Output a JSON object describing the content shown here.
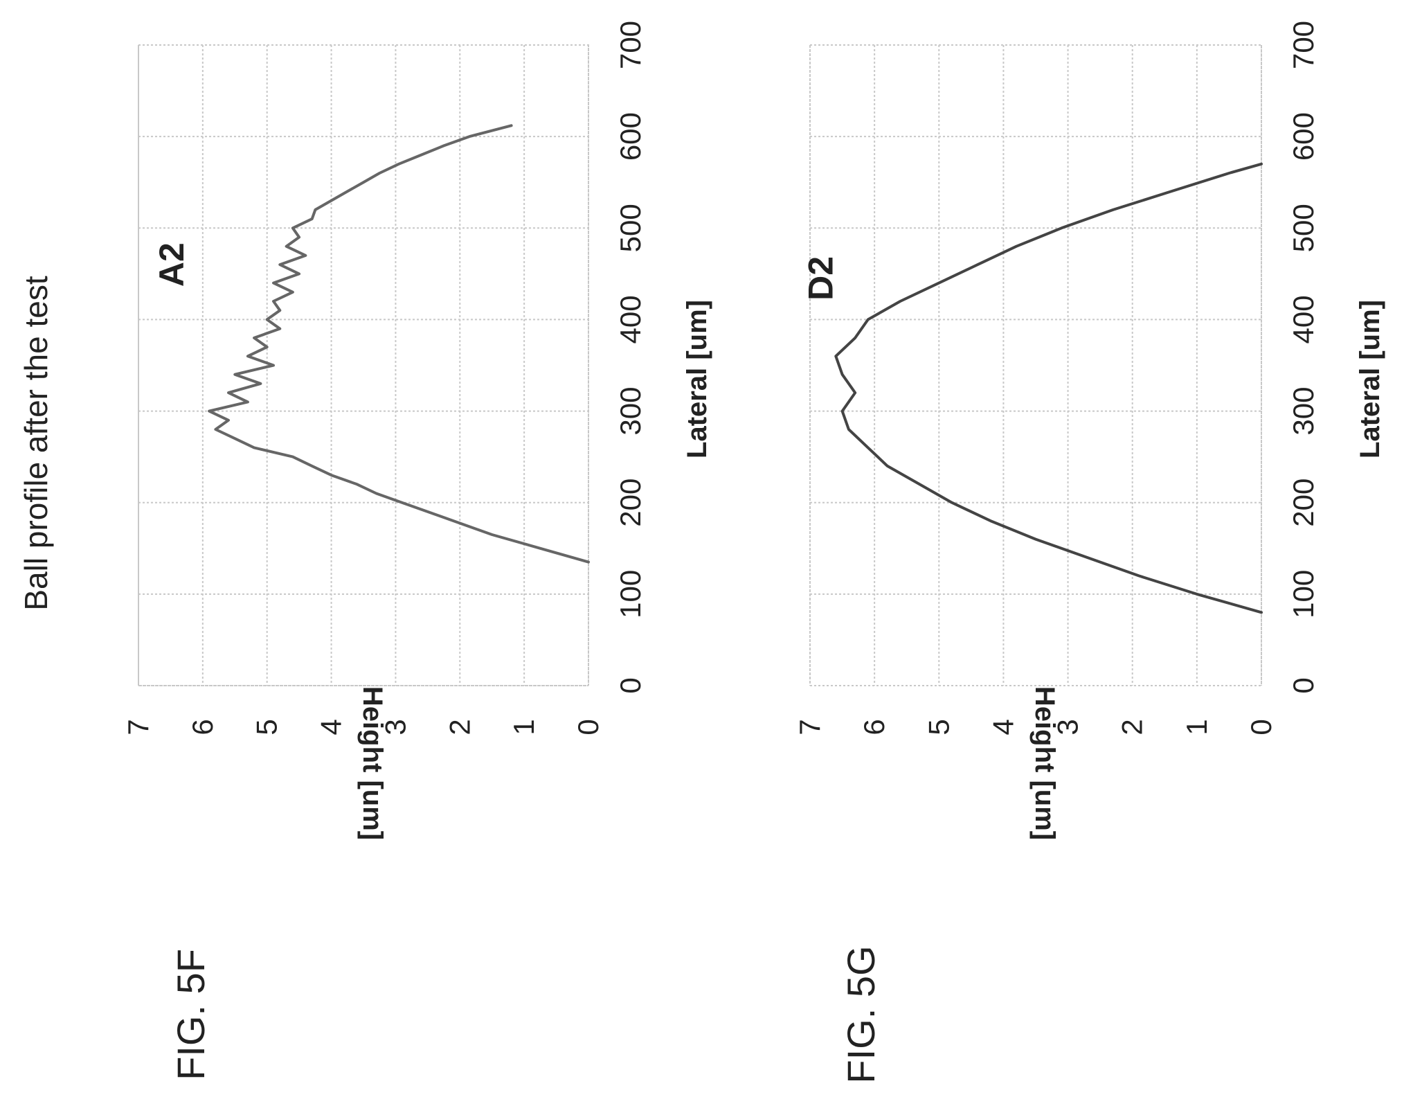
{
  "page_title": "Ball profile after the test",
  "chart_data": [
    {
      "type": "line",
      "figure_label": "FIG. 5F",
      "xlabel": "Lateral [um]",
      "ylabel": "Height [um]",
      "xlim": [
        0,
        700
      ],
      "ylim": [
        0,
        7
      ],
      "x_ticks": [
        "0",
        "100",
        "200",
        "300",
        "400",
        "500",
        "600",
        "700"
      ],
      "y_ticks": [
        "0",
        "1",
        "2",
        "3",
        "4",
        "5",
        "6",
        "7"
      ],
      "grid": true,
      "series": [
        {
          "name": "A2",
          "color": "#666666",
          "x": [
            135,
            150,
            165,
            170,
            185,
            200,
            210,
            220,
            230,
            240,
            250,
            260,
            270,
            280,
            290,
            300,
            310,
            320,
            330,
            340,
            350,
            360,
            370,
            380,
            390,
            400,
            410,
            420,
            430,
            440,
            450,
            460,
            470,
            480,
            490,
            500,
            510,
            520,
            530,
            540,
            550,
            560,
            570,
            580,
            590,
            600,
            612
          ],
          "y": [
            0,
            0.75,
            1.5,
            1.7,
            2.3,
            2.9,
            3.3,
            3.6,
            4.0,
            4.3,
            4.6,
            5.2,
            5.5,
            5.8,
            5.6,
            5.9,
            5.3,
            5.6,
            5.1,
            5.5,
            4.9,
            5.3,
            5.0,
            5.2,
            4.8,
            5.0,
            4.8,
            4.9,
            4.6,
            4.9,
            4.5,
            4.8,
            4.4,
            4.7,
            4.5,
            4.6,
            4.3,
            4.25,
            4.0,
            3.75,
            3.5,
            3.25,
            2.95,
            2.6,
            2.25,
            1.85,
            1.2
          ]
        }
      ]
    },
    {
      "type": "line",
      "figure_label": "FIG. 5G",
      "xlabel": "Lateral [um]",
      "ylabel": "Height [um]",
      "xlim": [
        0,
        700
      ],
      "ylim": [
        0,
        7
      ],
      "x_ticks": [
        "0",
        "100",
        "200",
        "300",
        "400",
        "500",
        "600",
        "700"
      ],
      "y_ticks": [
        "0",
        "1",
        "2",
        "3",
        "4",
        "5",
        "6",
        "7"
      ],
      "grid": true,
      "series": [
        {
          "name": "D2",
          "color": "#444444",
          "x": [
            80,
            100,
            120,
            140,
            160,
            180,
            200,
            220,
            240,
            260,
            280,
            300,
            320,
            340,
            360,
            380,
            400,
            420,
            440,
            460,
            480,
            500,
            520,
            540,
            560,
            570
          ],
          "y": [
            0,
            1.0,
            1.9,
            2.7,
            3.5,
            4.2,
            4.8,
            5.3,
            5.8,
            6.1,
            6.4,
            6.5,
            6.3,
            6.5,
            6.6,
            6.3,
            6.1,
            5.6,
            5.0,
            4.4,
            3.8,
            3.1,
            2.3,
            1.4,
            0.5,
            0.0
          ]
        }
      ]
    }
  ]
}
